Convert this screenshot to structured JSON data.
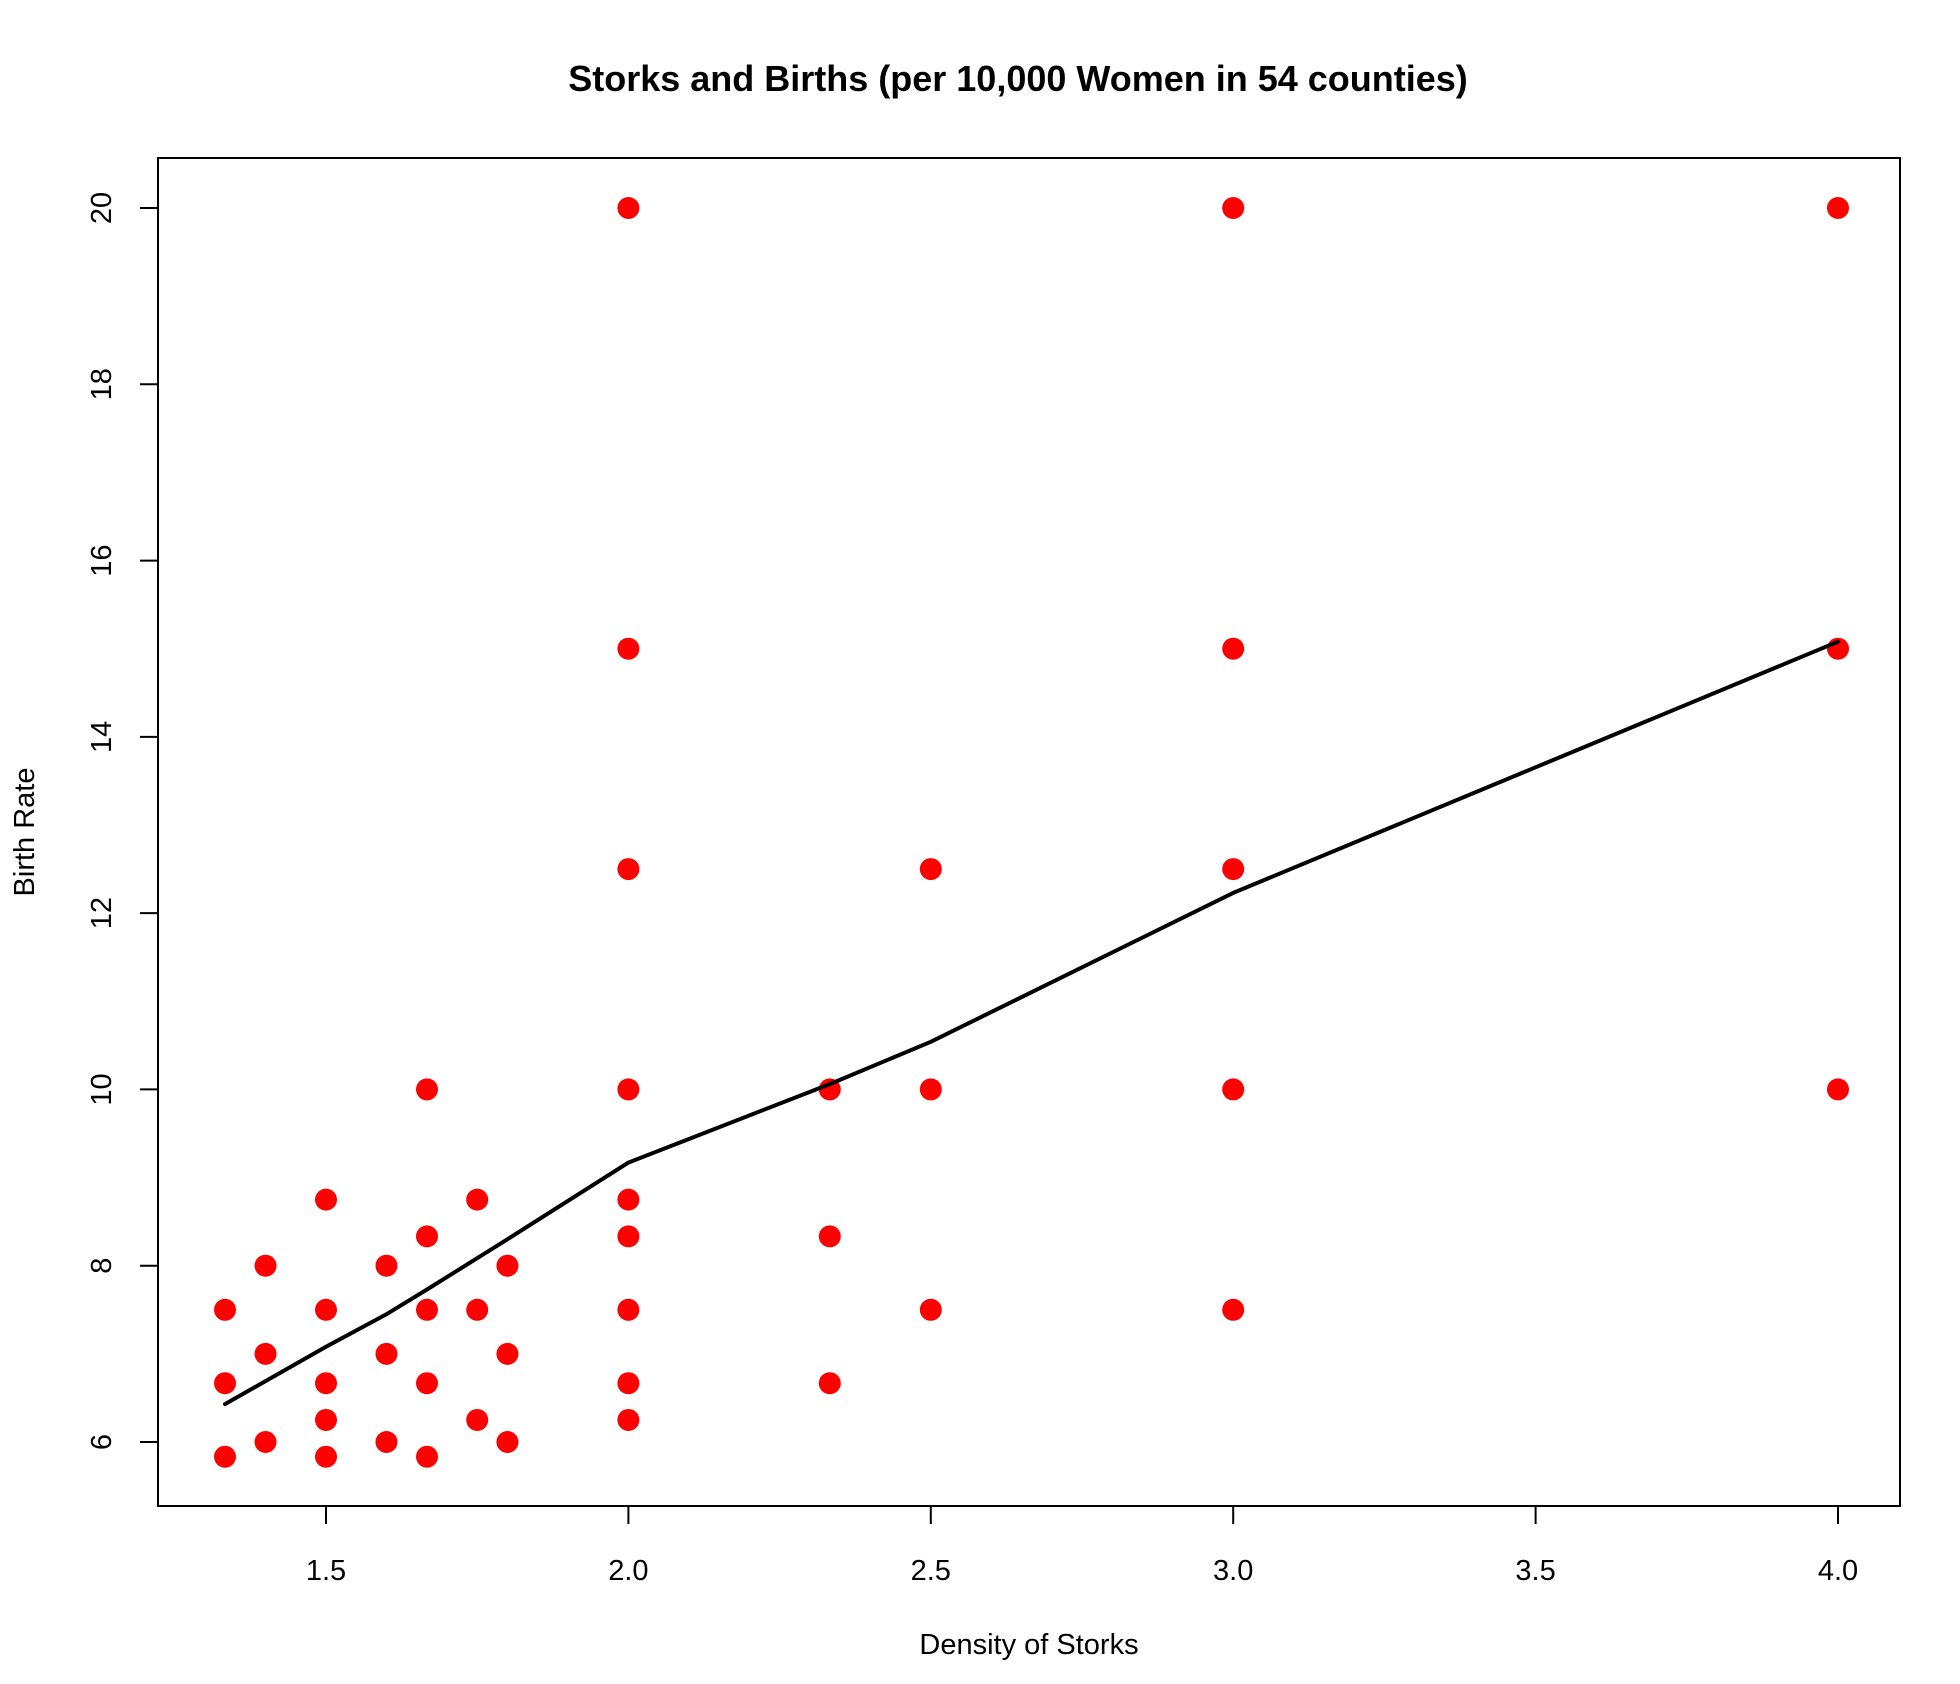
{
  "chart_data": {
    "type": "scatter",
    "title": "Storks and Births (per 10,000 Women in 54 counties)",
    "xlabel": "Density of Storks",
    "ylabel": "Birth Rate",
    "xlim": [
      1.3,
      4.0
    ],
    "ylim": [
      5.5,
      20.6
    ],
    "xticks": [
      "1.5",
      "2.0",
      "2.5",
      "3.0",
      "3.5",
      "4.0"
    ],
    "yticks": [
      "6",
      "8",
      "10",
      "12",
      "14",
      "16",
      "18",
      "20"
    ],
    "grid": false,
    "point_color": "#ff0000",
    "line_color": "#000000",
    "series": [
      {
        "type": "scatter",
        "points": [
          [
            1.333,
            7.5
          ],
          [
            1.333,
            6.667
          ],
          [
            1.333,
            5.833
          ],
          [
            1.4,
            8.0
          ],
          [
            1.4,
            7.0
          ],
          [
            1.4,
            6.0
          ],
          [
            1.5,
            8.75
          ],
          [
            1.5,
            7.5
          ],
          [
            1.5,
            6.667
          ],
          [
            1.5,
            6.25
          ],
          [
            1.5,
            5.833
          ],
          [
            1.6,
            8.0
          ],
          [
            1.6,
            7.0
          ],
          [
            1.6,
            6.0
          ],
          [
            1.667,
            10.0
          ],
          [
            1.667,
            8.333
          ],
          [
            1.667,
            7.5
          ],
          [
            1.667,
            6.667
          ],
          [
            1.667,
            5.833
          ],
          [
            1.75,
            8.75
          ],
          [
            1.75,
            7.5
          ],
          [
            1.75,
            6.25
          ],
          [
            1.8,
            8.0
          ],
          [
            1.8,
            7.0
          ],
          [
            1.8,
            6.0
          ],
          [
            2.0,
            20.0
          ],
          [
            2.0,
            15.0
          ],
          [
            2.0,
            12.5
          ],
          [
            2.0,
            10.0
          ],
          [
            2.0,
            8.75
          ],
          [
            2.0,
            8.333
          ],
          [
            2.0,
            7.5
          ],
          [
            2.0,
            6.667
          ],
          [
            2.0,
            6.25
          ],
          [
            2.333,
            10.0
          ],
          [
            2.333,
            8.333
          ],
          [
            2.333,
            6.667
          ],
          [
            2.5,
            12.5
          ],
          [
            2.5,
            10.0
          ],
          [
            2.5,
            7.5
          ],
          [
            3.0,
            20.0
          ],
          [
            3.0,
            15.0
          ],
          [
            3.0,
            12.5
          ],
          [
            3.0,
            10.0
          ],
          [
            3.0,
            7.5
          ],
          [
            4.0,
            20.0
          ],
          [
            4.0,
            15.0
          ],
          [
            4.0,
            10.0
          ]
        ]
      },
      {
        "type": "line",
        "points": [
          [
            1.333,
            6.43
          ],
          [
            1.5,
            7.08
          ],
          [
            1.6,
            7.45
          ],
          [
            1.667,
            7.73
          ],
          [
            1.8,
            8.3
          ],
          [
            2.0,
            9.17
          ],
          [
            2.333,
            10.06
          ],
          [
            2.5,
            10.54
          ],
          [
            3.0,
            12.23
          ],
          [
            4.0,
            15.08
          ]
        ]
      }
    ]
  }
}
